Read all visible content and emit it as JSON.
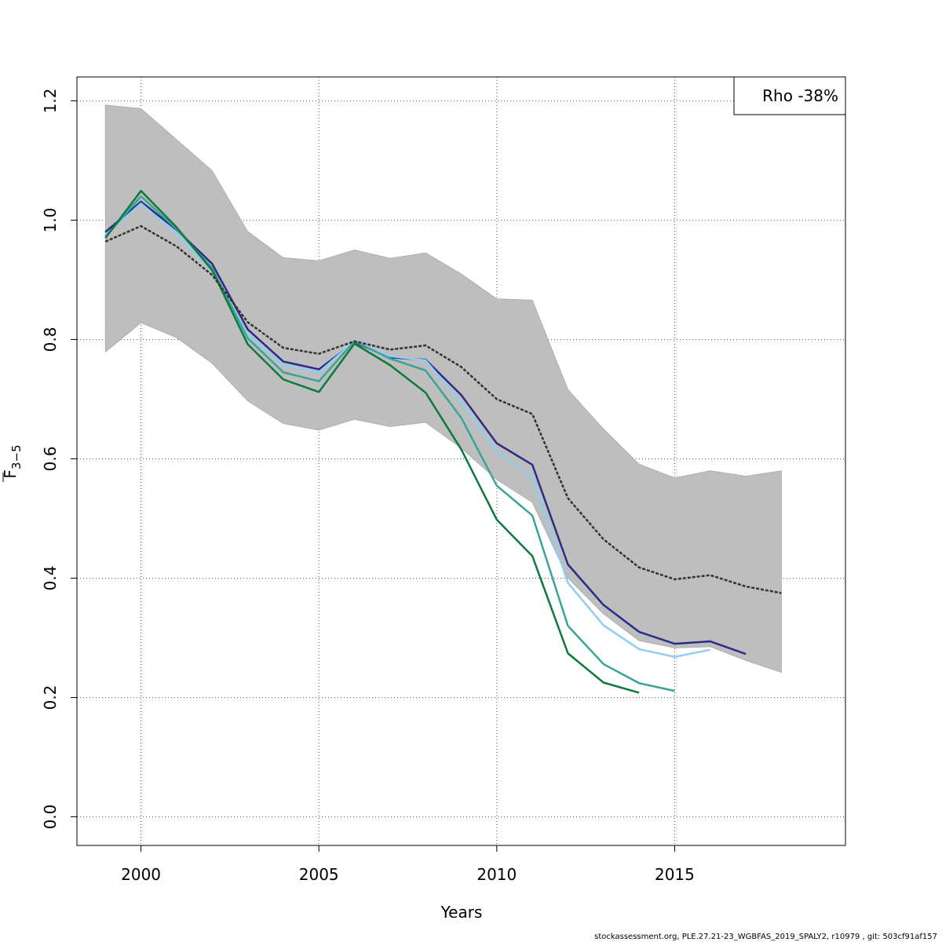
{
  "chart_data": {
    "type": "line",
    "xlabel": "Years",
    "ylabel_main": "F",
    "ylabel_sub": "3−5",
    "xlim": [
      1998.2,
      2019.8
    ],
    "ylim": [
      -0.048,
      1.24
    ],
    "x_ticks": [
      2000,
      2005,
      2010,
      2015
    ],
    "y_ticks": [
      0.0,
      0.2,
      0.4,
      0.6,
      0.8,
      1.0,
      1.2
    ],
    "y_tick_labels": [
      "0.0",
      "0.2",
      "0.4",
      "0.6",
      "0.8",
      "1.0",
      "1.2"
    ],
    "grid": true,
    "legend": {
      "text": "Rho -38%",
      "position": "top-right"
    },
    "confidence_band": {
      "color": "#bebebe",
      "x": [
        1999,
        2000,
        2001,
        2002,
        2003,
        2004,
        2005,
        2006,
        2007,
        2008,
        2009,
        2010,
        2011,
        2012,
        2013,
        2014,
        2015,
        2016,
        2017,
        2018
      ],
      "upper": [
        1.193,
        1.187,
        1.135,
        1.083,
        0.981,
        0.937,
        0.932,
        0.95,
        0.936,
        0.945,
        0.91,
        0.868,
        0.866,
        0.716,
        0.65,
        0.591,
        0.568,
        0.58,
        0.571,
        0.58
      ],
      "lower": [
        0.779,
        0.828,
        0.803,
        0.76,
        0.697,
        0.659,
        0.648,
        0.666,
        0.654,
        0.661,
        0.618,
        0.565,
        0.527,
        0.4,
        0.34,
        0.295,
        0.283,
        0.285,
        0.262,
        0.242
      ]
    },
    "series": [
      {
        "color": "#333333",
        "dashed": true,
        "x": [
          1999,
          2000,
          2001,
          2002,
          2003,
          2004,
          2005,
          2006,
          2007,
          2008,
          2009,
          2010,
          2011,
          2012,
          2013,
          2014,
          2015,
          2016,
          2017,
          2018
        ],
        "values": [
          0.964,
          0.99,
          0.956,
          0.908,
          0.829,
          0.786,
          0.776,
          0.797,
          0.783,
          0.79,
          0.754,
          0.7,
          0.675,
          0.534,
          0.465,
          0.418,
          0.398,
          0.405,
          0.386,
          0.375
        ]
      },
      {
        "color": "#2b2b8a",
        "dashed": false,
        "x": [
          1999,
          2000,
          2001,
          2002,
          2003,
          2004,
          2005,
          2006,
          2007,
          2008,
          2009,
          2010,
          2011,
          2012,
          2013,
          2014,
          2015,
          2016,
          2017
        ],
        "values": [
          0.98,
          1.031,
          0.984,
          0.927,
          0.817,
          0.763,
          0.75,
          0.795,
          0.77,
          0.766,
          0.707,
          0.626,
          0.59,
          0.423,
          0.355,
          0.31,
          0.29,
          0.294,
          0.273
        ]
      },
      {
        "color": "#8ecfef",
        "dashed": false,
        "x": [
          1999,
          2000,
          2001,
          2002,
          2003,
          2004,
          2005,
          2006,
          2007,
          2008,
          2009,
          2010,
          2011,
          2012,
          2013,
          2014,
          2015,
          2016
        ],
        "values": [
          0.975,
          1.028,
          0.977,
          0.915,
          0.808,
          0.757,
          0.745,
          0.797,
          0.772,
          0.765,
          0.695,
          0.612,
          0.569,
          0.392,
          0.321,
          0.281,
          0.268,
          0.28
        ]
      },
      {
        "color": "#3aa39a",
        "dashed": false,
        "x": [
          1999,
          2000,
          2001,
          2002,
          2003,
          2004,
          2005,
          2006,
          2007,
          2008,
          2009,
          2010,
          2011,
          2012,
          2013,
          2014,
          2015
        ],
        "values": [
          0.972,
          1.04,
          0.985,
          0.92,
          0.802,
          0.745,
          0.73,
          0.797,
          0.768,
          0.748,
          0.669,
          0.555,
          0.505,
          0.32,
          0.256,
          0.224,
          0.211
        ]
      },
      {
        "color": "#0d7a3c",
        "dashed": false,
        "x": [
          1999,
          2000,
          2001,
          2002,
          2003,
          2004,
          2005,
          2006,
          2007,
          2008,
          2009,
          2010,
          2011,
          2012,
          2013,
          2014
        ],
        "values": [
          0.97,
          1.049,
          0.988,
          0.916,
          0.792,
          0.733,
          0.712,
          0.793,
          0.757,
          0.711,
          0.616,
          0.498,
          0.437,
          0.274,
          0.225,
          0.208
        ]
      }
    ]
  },
  "footer": "stockassessment.org, PLE.27.21-23_WGBFAS_2019_SPALY2, r10979 , git: 503cf91af157"
}
